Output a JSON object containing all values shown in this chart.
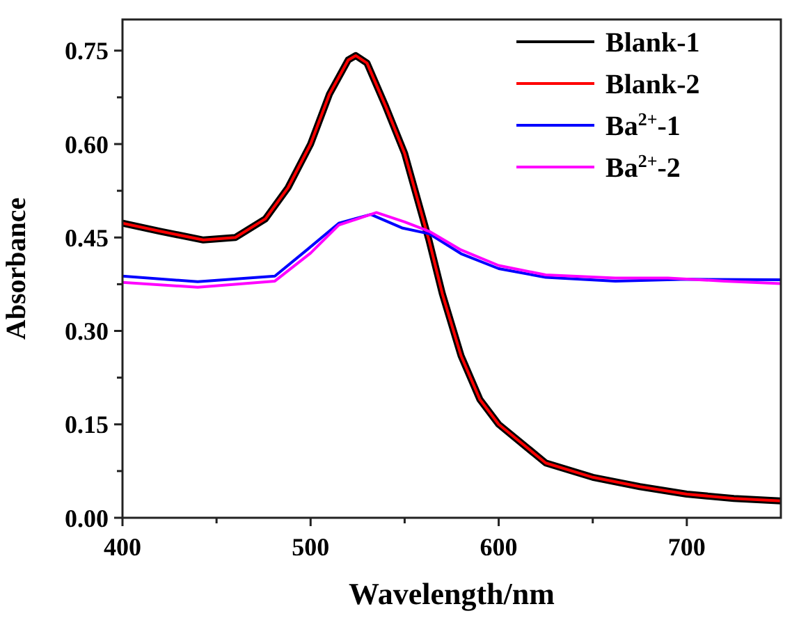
{
  "chart_data": {
    "type": "line",
    "xlabel": "Wavelength/nm",
    "ylabel": "Absorbance",
    "xlim": [
      400,
      750
    ],
    "ylim": [
      0,
      0.8
    ],
    "xticks": [
      400,
      500,
      600,
      700
    ],
    "yticks": [
      {
        "value": 0,
        "label": "0.00"
      },
      {
        "value": 0.15,
        "label": "0.15"
      },
      {
        "value": 0.3,
        "label": "0.30"
      },
      {
        "value": 0.45,
        "label": "0.45"
      },
      {
        "value": 0.6,
        "label": "0.60"
      },
      {
        "value": 0.75,
        "label": "0.75"
      }
    ],
    "legend": "top right",
    "grid": false,
    "marker": "none",
    "line_style": "solid",
    "series": [
      {
        "name": "Blank-1",
        "color": "#000000",
        "x": [
          400,
          420,
          443,
          460,
          476,
          488,
          500,
          510,
          520,
          524,
          530,
          540,
          550,
          563,
          570,
          580,
          590,
          600,
          625,
          650,
          675,
          700,
          725,
          750
        ],
        "values": [
          0.473,
          0.46,
          0.446,
          0.45,
          0.48,
          0.53,
          0.6,
          0.68,
          0.735,
          0.742,
          0.73,
          0.66,
          0.585,
          0.445,
          0.36,
          0.26,
          0.19,
          0.15,
          0.088,
          0.065,
          0.05,
          0.038,
          0.031,
          0.027
        ]
      },
      {
        "name": "Blank-2",
        "color": "#ff0000",
        "x": [
          400,
          420,
          443,
          460,
          476,
          488,
          500,
          510,
          520,
          524,
          530,
          540,
          550,
          563,
          570,
          580,
          590,
          600,
          625,
          650,
          675,
          700,
          725,
          750
        ],
        "values": [
          0.473,
          0.46,
          0.446,
          0.45,
          0.48,
          0.53,
          0.6,
          0.68,
          0.735,
          0.742,
          0.73,
          0.66,
          0.585,
          0.445,
          0.36,
          0.26,
          0.19,
          0.15,
          0.088,
          0.065,
          0.05,
          0.038,
          0.031,
          0.027
        ]
      },
      {
        "name": "Ba$^{2+}$-1",
        "color": "#0000ff",
        "x": [
          400,
          440,
          481,
          498,
          515,
          532,
          549,
          563,
          580,
          600,
          625,
          662,
          700,
          750
        ],
        "values": [
          0.388,
          0.379,
          0.388,
          0.43,
          0.473,
          0.487,
          0.465,
          0.456,
          0.424,
          0.4,
          0.386,
          0.38,
          0.383,
          0.382
        ]
      },
      {
        "name": "Ba$^{2+}$-2",
        "color": "#ff00ff",
        "x": [
          400,
          440,
          481,
          500,
          515,
          535,
          550,
          563,
          580,
          600,
          625,
          662,
          690,
          720,
          750
        ],
        "values": [
          0.378,
          0.37,
          0.38,
          0.425,
          0.47,
          0.49,
          0.475,
          0.46,
          0.43,
          0.405,
          0.39,
          0.385,
          0.385,
          0.38,
          0.376
        ]
      }
    ]
  }
}
